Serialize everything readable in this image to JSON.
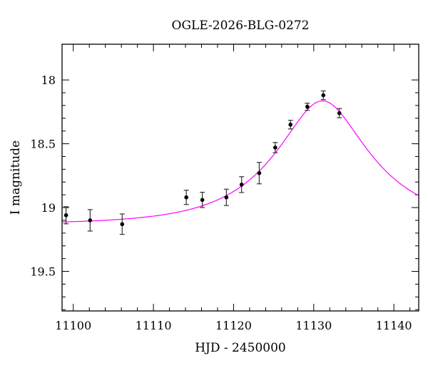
{
  "chart_data": {
    "type": "scatter",
    "title": "OGLE-2026-BLG-0272",
    "xlabel": "HJD - 2450000",
    "ylabel": "I magnitude",
    "xlim": [
      11098.6,
      11143.1
    ],
    "ylim": [
      19.81,
      17.72
    ],
    "y_inverted": true,
    "grid": false,
    "x_ticks": [
      "11100",
      "11110",
      "11120",
      "11130",
      "11140"
    ],
    "y_ticks": [
      "18",
      "18.5",
      "19",
      "19.5"
    ],
    "points_color": "#000000",
    "model_color": "#ff00ff",
    "series": [
      {
        "x": [
          11099.1,
          11102.1,
          11106.1,
          11114.1,
          11116.1,
          11119.1,
          11121.0,
          11123.2,
          11125.2,
          11127.1,
          11129.2,
          11131.2,
          11133.2
        ],
        "y": [
          19.06,
          19.1,
          19.13,
          18.92,
          18.94,
          18.92,
          18.82,
          18.73,
          18.53,
          18.35,
          18.21,
          18.12,
          18.26
        ],
        "yerr": [
          0.067,
          0.084,
          0.08,
          0.056,
          0.06,
          0.064,
          0.062,
          0.084,
          0.04,
          0.034,
          0.028,
          0.034,
          0.036
        ]
      }
    ],
    "model": {
      "type": "pspl",
      "t0": 11131.1,
      "u0": 0.44,
      "tE": 10.75,
      "baseline_mag": 19.13
    }
  }
}
